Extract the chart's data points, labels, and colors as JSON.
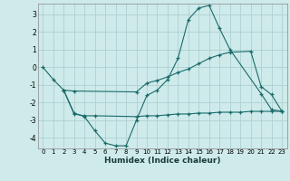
{
  "xlabel": "Humidex (Indice chaleur)",
  "background_color": "#ceeaea",
  "grid_color": "#aed0d0",
  "line_color": "#1a6b6b",
  "xlim": [
    -0.5,
    23.5
  ],
  "ylim": [
    -4.6,
    3.6
  ],
  "yticks": [
    -4,
    -3,
    -2,
    -1,
    0,
    1,
    2,
    3
  ],
  "xticks": [
    0,
    1,
    2,
    3,
    4,
    5,
    6,
    7,
    8,
    9,
    10,
    11,
    12,
    13,
    14,
    15,
    16,
    17,
    18,
    19,
    20,
    21,
    22,
    23
  ],
  "line1_x": [
    0,
    1,
    2,
    3,
    4,
    5,
    6,
    7,
    8,
    9,
    10,
    11,
    12,
    13,
    14,
    15,
    16,
    17,
    18,
    21,
    22,
    23
  ],
  "line1_y": [
    0.0,
    -0.7,
    -1.3,
    -2.6,
    -2.8,
    -3.6,
    -4.3,
    -4.45,
    -4.45,
    -3.0,
    -1.6,
    -1.3,
    -0.7,
    0.5,
    2.7,
    3.35,
    3.5,
    2.2,
    1.0,
    -1.5,
    -2.4,
    -2.5
  ],
  "line2_x": [
    2,
    3,
    9,
    10,
    11,
    12,
    13,
    14,
    15,
    16,
    17,
    18,
    20,
    21,
    22,
    23
  ],
  "line2_y": [
    -1.3,
    -1.35,
    -1.4,
    -0.9,
    -0.75,
    -0.55,
    -0.3,
    -0.1,
    0.2,
    0.5,
    0.7,
    0.85,
    0.9,
    -1.1,
    -1.55,
    -2.5
  ],
  "line3_x": [
    2,
    3,
    4,
    5,
    9,
    10,
    11,
    12,
    13,
    14,
    15,
    16,
    17,
    18,
    19,
    20,
    21,
    22,
    23
  ],
  "line3_y": [
    -1.3,
    -2.65,
    -2.75,
    -2.75,
    -2.8,
    -2.75,
    -2.75,
    -2.7,
    -2.65,
    -2.65,
    -2.6,
    -2.6,
    -2.55,
    -2.55,
    -2.55,
    -2.5,
    -2.5,
    -2.5,
    -2.5
  ]
}
